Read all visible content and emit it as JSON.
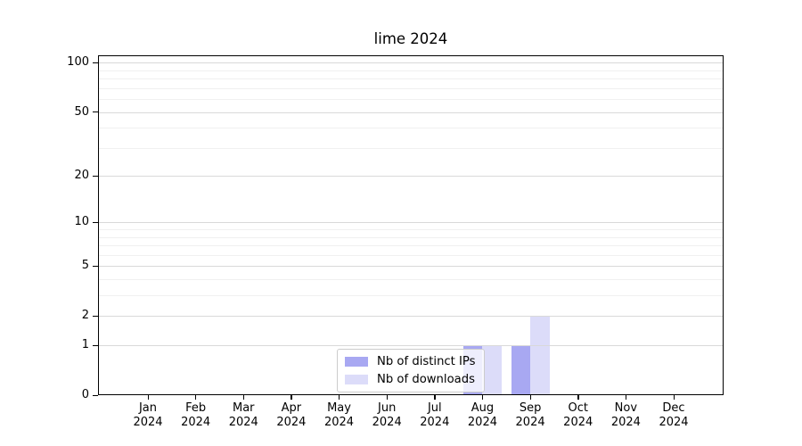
{
  "title": "lime 2024",
  "chart_data": {
    "type": "bar",
    "title": "lime 2024",
    "x_months": [
      "Jan",
      "Feb",
      "Mar",
      "Apr",
      "May",
      "Jun",
      "Jul",
      "Aug",
      "Sep",
      "Oct",
      "Nov",
      "Dec"
    ],
    "x_year": "2024",
    "series": [
      {
        "name": "Nb of distinct IPs",
        "color": "#a8a8f2",
        "values": [
          0,
          0,
          0,
          0,
          0,
          0,
          0,
          1,
          1,
          0,
          0,
          0
        ]
      },
      {
        "name": "Nb of downloads",
        "color": "#dcdcf9",
        "values": [
          0,
          0,
          0,
          0,
          0,
          0,
          0,
          1,
          2,
          0,
          0,
          0
        ]
      }
    ],
    "y_axis": {
      "scale": "log1p",
      "ticks": [
        0,
        1,
        2,
        5,
        10,
        20,
        50,
        100
      ],
      "minor_gridlines": [
        3,
        4,
        6,
        7,
        8,
        9,
        30,
        40,
        60,
        70,
        80,
        90
      ],
      "ylim": [
        0,
        111
      ]
    },
    "grid": true,
    "legend_position": "bottom-center",
    "colors": {
      "major_grid": "#d9d9d9",
      "minor_grid": "#f0f0f0",
      "spine": "#000000",
      "background": "#ffffff"
    }
  }
}
